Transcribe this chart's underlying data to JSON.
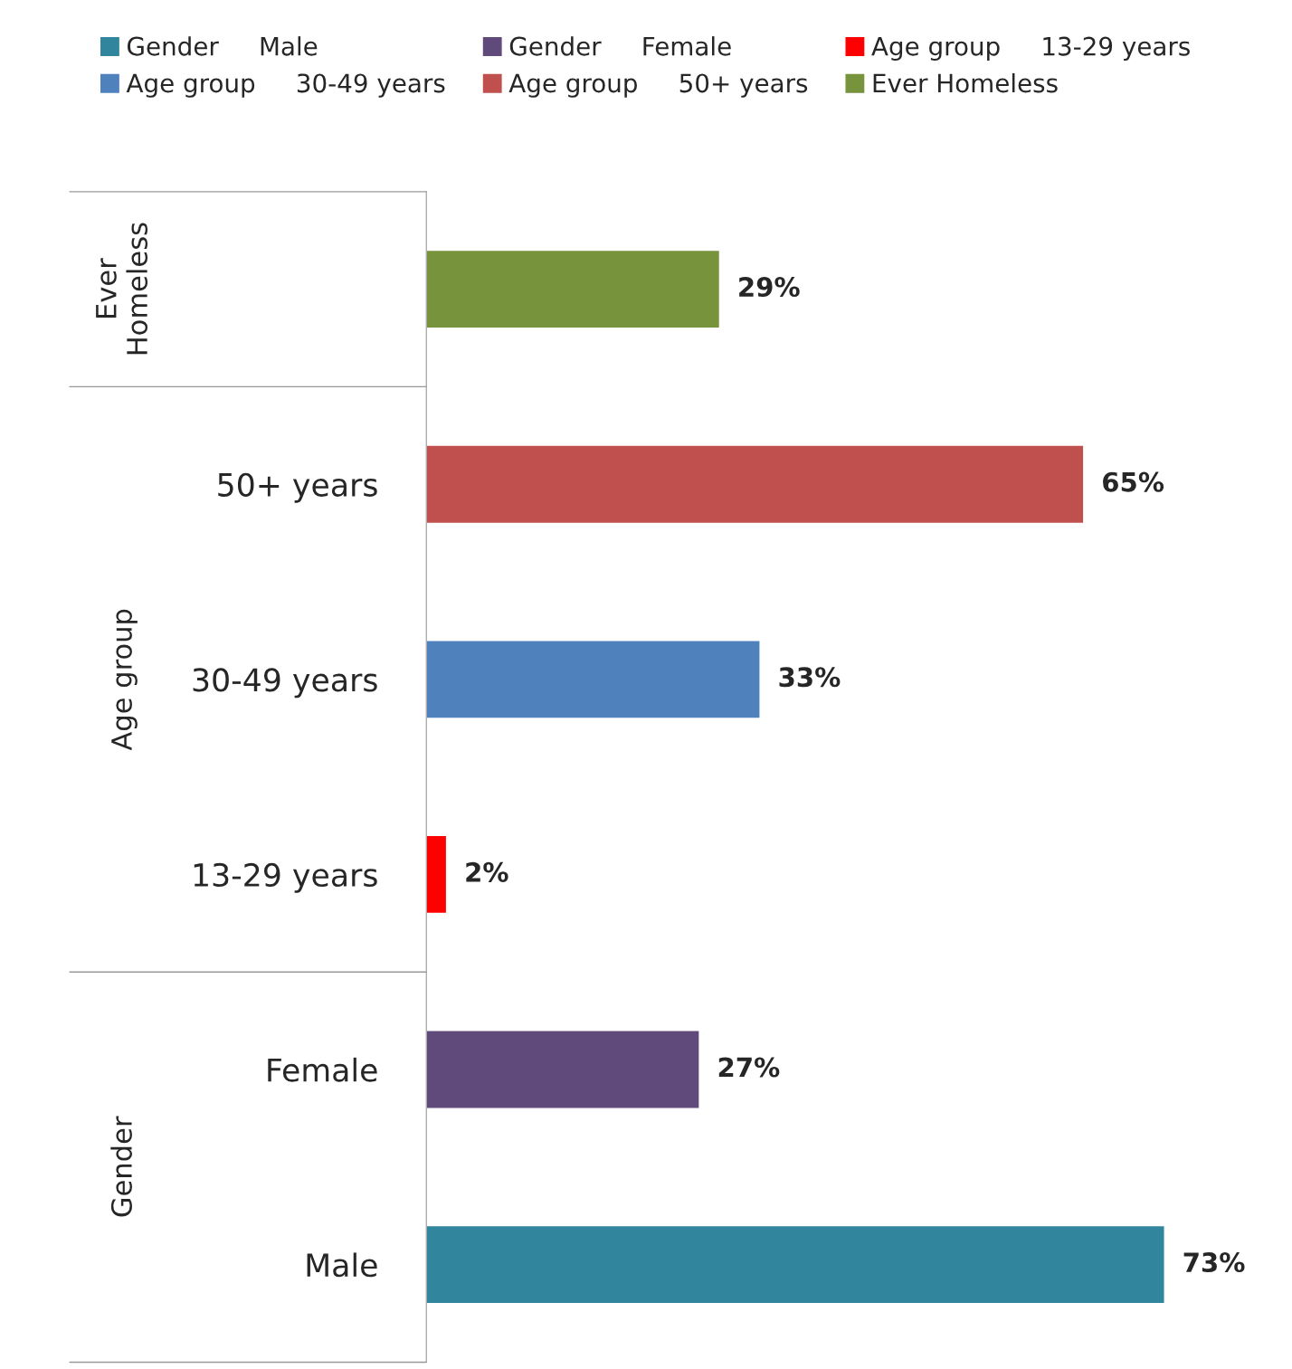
{
  "chart_data": {
    "type": "bar",
    "orientation": "horizontal",
    "categories": [
      null,
      "50+ years",
      "30-49 years",
      "13-29 years",
      "Female",
      "Male"
    ],
    "series": [
      {
        "name": "Gender     Male",
        "color": "#31859c",
        "values": [
          null,
          null,
          null,
          null,
          null,
          73
        ],
        "value_labels": [
          null,
          null,
          null,
          null,
          null,
          "73%"
        ]
      },
      {
        "name": "Gender     Female",
        "color": "#604a7b",
        "values": [
          null,
          null,
          null,
          null,
          27,
          null
        ],
        "value_labels": [
          null,
          null,
          null,
          null,
          "27%",
          null
        ]
      },
      {
        "name": "Age group     13-29 years",
        "color": "#ff0000",
        "values": [
          null,
          null,
          null,
          2,
          null,
          null
        ],
        "value_labels": [
          null,
          null,
          null,
          "2%",
          null,
          null
        ]
      },
      {
        "name": "Age group     30-49 years",
        "color": "#4f81bd",
        "values": [
          null,
          null,
          33,
          null,
          null,
          null
        ],
        "value_labels": [
          null,
          null,
          "33%",
          null,
          null,
          null
        ]
      },
      {
        "name": "Age group     50+ years",
        "color": "#c0504d",
        "values": [
          null,
          65,
          null,
          null,
          null,
          null
        ],
        "value_labels": [
          null,
          "65%",
          null,
          null,
          null,
          null
        ]
      },
      {
        "name": "Ever Homeless",
        "color": "#77933c",
        "values": [
          29,
          null,
          null,
          null,
          null,
          null
        ],
        "value_labels": [
          "29%",
          null,
          null,
          null,
          null,
          null
        ]
      }
    ],
    "annotations": [
      "Ever\nHomeless",
      "Age group",
      "Gender"
    ],
    "legend": "top",
    "grid": false
  }
}
